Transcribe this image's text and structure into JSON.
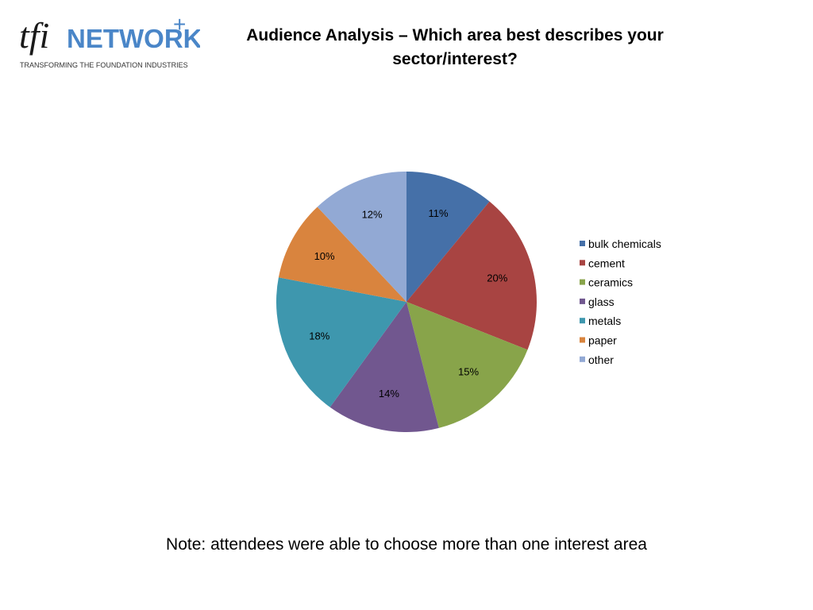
{
  "logo": {
    "brand_mark": "tfi",
    "brand_name": "NETWORK",
    "brand_plus": "+",
    "tagline": "TRANSFORMING THE FOUNDATION INDUSTRIES",
    "colors": {
      "mark": "#1a1a1a",
      "name": "#4a86c8",
      "tagline": "#333333"
    }
  },
  "title": {
    "line1": "Audience Analysis – Which area best describes your",
    "line2": "sector/interest?"
  },
  "note": "Note: attendees were able to choose more than one interest area",
  "chart_data": {
    "type": "pie",
    "categories": [
      "bulk chemicals",
      "cement",
      "ceramics",
      "glass",
      "metals",
      "paper",
      "other"
    ],
    "values": [
      11,
      20,
      15,
      14,
      18,
      10,
      12
    ],
    "labels": [
      "11%",
      "20%",
      "15%",
      "14%",
      "18%",
      "10%",
      "12%"
    ],
    "colors": [
      "#4570a8",
      "#a84442",
      "#88a44a",
      "#71578f",
      "#3e97ae",
      "#d9843e",
      "#92a9d4"
    ],
    "legend_position": "right",
    "start_angle": "12 o'clock",
    "direction": "clockwise"
  }
}
